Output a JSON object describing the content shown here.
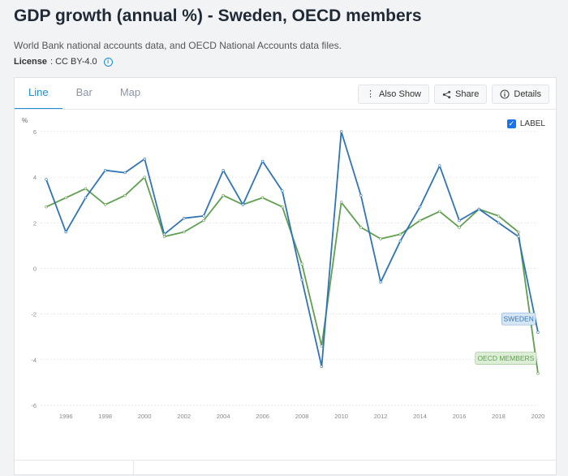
{
  "page": {
    "title": "GDP growth (annual %) - Sweden, OECD members",
    "source": "World Bank national accounts data, and OECD National Accounts data files.",
    "license_label": "License",
    "license_value": ": CC BY-4.0"
  },
  "tabs": [
    {
      "label": "Line",
      "active": true
    },
    {
      "label": "Bar",
      "active": false
    },
    {
      "label": "Map",
      "active": false
    }
  ],
  "toolbar": {
    "also_show": "Also Show",
    "share": "Share",
    "details": "Details"
  },
  "label_toggle": {
    "text": "LABEL",
    "checked": true
  },
  "chart_data": {
    "type": "line",
    "ylabel": "%",
    "ylim": [
      -6,
      6
    ],
    "yticks": [
      "6",
      "4",
      "2",
      "0",
      "-2",
      "-4",
      "-6"
    ],
    "xticks": [
      "1996",
      "1998",
      "2000",
      "2002",
      "2004",
      "2006",
      "2008",
      "2010",
      "2012",
      "2014",
      "2016",
      "2018",
      "2020"
    ],
    "x": [
      1995,
      1996,
      1997,
      1998,
      1999,
      2000,
      2001,
      2002,
      2003,
      2004,
      2005,
      2006,
      2007,
      2008,
      2009,
      2010,
      2011,
      2012,
      2013,
      2014,
      2015,
      2016,
      2017,
      2018,
      2019,
      2020
    ],
    "grid": true,
    "series": [
      {
        "name": "SWEDEN",
        "color": "#2f74b5",
        "label_bg": "#d6e6f5",
        "values": [
          3.9,
          1.6,
          3.1,
          4.3,
          4.2,
          4.8,
          1.5,
          2.2,
          2.3,
          4.3,
          2.8,
          4.7,
          3.4,
          -0.5,
          -4.3,
          6.0,
          3.2,
          -0.6,
          1.2,
          2.7,
          4.5,
          2.1,
          2.6,
          2.0,
          1.4,
          -2.8
        ]
      },
      {
        "name": "OECD MEMBERS",
        "color": "#5f9f4f",
        "label_bg": "#dcefd6",
        "values": [
          2.7,
          3.1,
          3.5,
          2.8,
          3.2,
          4.0,
          1.4,
          1.6,
          2.1,
          3.2,
          2.8,
          3.1,
          2.7,
          0.2,
          -3.4,
          2.9,
          1.8,
          1.3,
          1.5,
          2.1,
          2.5,
          1.8,
          2.6,
          2.3,
          1.6,
          -4.6
        ]
      }
    ]
  }
}
